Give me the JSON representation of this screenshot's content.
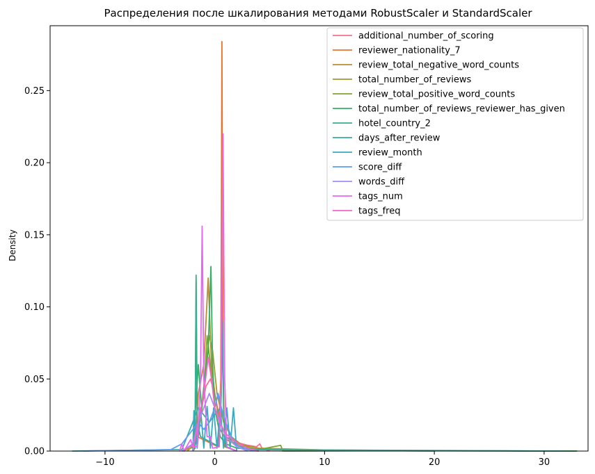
{
  "chart_data": {
    "type": "line",
    "title": "Распределения после шкалирования методами RobustScaler и StandardScaler",
    "xlabel": "",
    "ylabel": "Density",
    "xlim": [
      -15,
      34
    ],
    "ylim": [
      0,
      0.295
    ],
    "x_ticks": [
      -10,
      0,
      10,
      20,
      30
    ],
    "y_ticks": [
      0.0,
      0.05,
      0.1,
      0.15,
      0.2,
      0.25
    ],
    "y_tick_labels": [
      "0.00",
      "0.05",
      "0.10",
      "0.15",
      "0.20",
      "0.25"
    ],
    "grid": false,
    "legend_position": "top-right",
    "series": [
      {
        "name": "additional_number_of_scoring",
        "color": "#f77189",
        "points": [
          [
            -3,
            0
          ],
          [
            -2,
            0.004
          ],
          [
            -1.6,
            0.012
          ],
          [
            -1.2,
            0.03
          ],
          [
            -0.8,
            0.045
          ],
          [
            -0.4,
            0.05
          ],
          [
            0,
            0.04
          ],
          [
            0.5,
            0.02
          ],
          [
            1,
            0.01
          ],
          [
            2,
            0.006
          ],
          [
            3,
            0.004
          ],
          [
            3.8,
            0.003
          ],
          [
            4.1,
            0.005
          ],
          [
            4.3,
            0.002
          ],
          [
            5,
            0
          ]
        ]
      },
      {
        "name": "reviewer_nationality_7",
        "color": "#e8742f",
        "points": [
          [
            -2,
            0
          ],
          [
            -1.8,
            0.002
          ],
          [
            -1.7,
            0.118
          ],
          [
            -1.6,
            0.01
          ],
          [
            0.3,
            0.003
          ],
          [
            0.55,
            0.05
          ],
          [
            0.65,
            0.284
          ],
          [
            0.75,
            0.06
          ],
          [
            0.9,
            0.003
          ],
          [
            2,
            0
          ]
        ]
      },
      {
        "name": "review_total_negative_word_counts",
        "color": "#bb8b32",
        "points": [
          [
            -3,
            0
          ],
          [
            -1.8,
            0.003
          ],
          [
            -1.5,
            0.04
          ],
          [
            -1,
            0.06
          ],
          [
            -0.6,
            0.12
          ],
          [
            -0.3,
            0.06
          ],
          [
            0,
            0.04
          ],
          [
            0.5,
            0.015
          ],
          [
            1,
            0.008
          ],
          [
            2,
            0.005
          ],
          [
            4,
            0.002
          ],
          [
            10,
            0.0008
          ],
          [
            20,
            0.0002
          ],
          [
            33,
            0
          ]
        ]
      },
      {
        "name": "total_number_of_reviews",
        "color": "#a09b31",
        "points": [
          [
            -2.5,
            0
          ],
          [
            -1.8,
            0.005
          ],
          [
            -1.2,
            0.03
          ],
          [
            -0.8,
            0.06
          ],
          [
            -0.5,
            0.08
          ],
          [
            -0.2,
            0.07
          ],
          [
            0.2,
            0.04
          ],
          [
            0.8,
            0.02
          ],
          [
            1.5,
            0.01
          ],
          [
            2.5,
            0.004
          ],
          [
            4,
            0
          ]
        ]
      },
      {
        "name": "review_total_positive_word_counts",
        "color": "#7ea631",
        "points": [
          [
            -2,
            0
          ],
          [
            -1.5,
            0.01
          ],
          [
            -1,
            0.04
          ],
          [
            -0.7,
            0.08
          ],
          [
            -0.4,
            0.06
          ],
          [
            0,
            0.03
          ],
          [
            1,
            0.01
          ],
          [
            2,
            0.004
          ],
          [
            4,
            0.001
          ],
          [
            6,
            0.004
          ],
          [
            6.2,
            0
          ],
          [
            15,
            0.0003
          ],
          [
            20,
            0
          ]
        ]
      },
      {
        "name": "total_number_of_reviews_reviewer_has_given",
        "color": "#32b165",
        "points": [
          [
            -2,
            0
          ],
          [
            -1.5,
            0.06
          ],
          [
            -1.2,
            0.03
          ],
          [
            -0.9,
            0.05
          ],
          [
            -0.6,
            0.07
          ],
          [
            -0.35,
            0.128
          ],
          [
            -0.2,
            0.06
          ],
          [
            0,
            0.03
          ],
          [
            0.5,
            0.01
          ],
          [
            1,
            0.005
          ],
          [
            2,
            0.002
          ],
          [
            5,
            0.001
          ],
          [
            15,
            0.0003
          ],
          [
            33,
            0
          ]
        ]
      },
      {
        "name": "hotel_country_2",
        "color": "#34ae91",
        "points": [
          [
            -2,
            0
          ],
          [
            -1.8,
            0.002
          ],
          [
            -1.7,
            0.122
          ],
          [
            -1.6,
            0.02
          ],
          [
            -1.3,
            0.01
          ],
          [
            0.4,
            0.003
          ],
          [
            0.6,
            0.04
          ],
          [
            0.7,
            0.09
          ],
          [
            0.8,
            0.03
          ],
          [
            1,
            0.003
          ],
          [
            2,
            0
          ]
        ]
      },
      {
        "name": "days_after_review",
        "color": "#36ada4",
        "points": [
          [
            -13,
            0
          ],
          [
            -3,
            0.001
          ],
          [
            -2,
            0.02
          ],
          [
            -1.5,
            0.03
          ],
          [
            -1,
            0.025
          ],
          [
            -0.5,
            0.02
          ],
          [
            0,
            0.025
          ],
          [
            0.5,
            0.03
          ],
          [
            1,
            0.02
          ],
          [
            1.5,
            0.01
          ],
          [
            2,
            0.004
          ],
          [
            3,
            0.001
          ],
          [
            31.7,
            0
          ]
        ]
      },
      {
        "name": "review_month",
        "color": "#38aabf",
        "points": [
          [
            -2,
            0
          ],
          [
            -1.9,
            0.028
          ],
          [
            -1.6,
            0.002
          ],
          [
            -1.3,
            0.03
          ],
          [
            -1,
            0.002
          ],
          [
            -0.7,
            0.031
          ],
          [
            -0.4,
            0.002
          ],
          [
            -0.1,
            0.03
          ],
          [
            0.2,
            0.002
          ],
          [
            0.5,
            0.03
          ],
          [
            0.8,
            0.002
          ],
          [
            1.1,
            0.03
          ],
          [
            1.4,
            0.002
          ],
          [
            1.7,
            0.03
          ],
          [
            2,
            0
          ]
        ]
      },
      {
        "name": "score_diff",
        "color": "#5d9ef2",
        "points": [
          [
            -12,
            0
          ],
          [
            -4,
            0.001
          ],
          [
            -3,
            0.005
          ],
          [
            -2,
            0.015
          ],
          [
            -1.5,
            0.02
          ],
          [
            -1,
            0.015
          ],
          [
            -0.5,
            0.02
          ],
          [
            0,
            0.03
          ],
          [
            0.3,
            0.04
          ],
          [
            0.6,
            0.03
          ],
          [
            1,
            0.02
          ],
          [
            1.5,
            0.01
          ],
          [
            2,
            0.004
          ],
          [
            3,
            0.001
          ],
          [
            4,
            0
          ]
        ]
      },
      {
        "name": "words_diff",
        "color": "#a48cf4",
        "points": [
          [
            -3,
            0
          ],
          [
            -2,
            0.005
          ],
          [
            -1.5,
            0.02
          ],
          [
            -1,
            0.03
          ],
          [
            -0.5,
            0.04
          ],
          [
            0,
            0.03
          ],
          [
            0.5,
            0.02
          ],
          [
            1,
            0.01
          ],
          [
            2,
            0.003
          ],
          [
            3,
            0
          ]
        ]
      },
      {
        "name": "tags_num",
        "color": "#e866f4",
        "points": [
          [
            -3.2,
            0
          ],
          [
            -3,
            0.005
          ],
          [
            -2.8,
            0
          ],
          [
            -2.5,
            0.004
          ],
          [
            -2.2,
            0.008
          ],
          [
            -2,
            0.003
          ],
          [
            -1.6,
            0.003
          ],
          [
            -1.3,
            0.05
          ],
          [
            -1.15,
            0.156
          ],
          [
            -1,
            0.05
          ],
          [
            -0.7,
            0.01
          ],
          [
            -0.4,
            0.01
          ],
          [
            -0.2,
            0.002
          ],
          [
            0.4,
            0.003
          ],
          [
            0.6,
            0.05
          ],
          [
            0.75,
            0.22
          ],
          [
            0.9,
            0.05
          ],
          [
            1.1,
            0.003
          ],
          [
            2,
            0
          ]
        ]
      },
      {
        "name": "tags_freq",
        "color": "#f565cc",
        "points": [
          [
            -2,
            0
          ],
          [
            -1.5,
            0.02
          ],
          [
            -1,
            0.04
          ],
          [
            -0.6,
            0.065
          ],
          [
            -0.3,
            0.05
          ],
          [
            0,
            0.03
          ],
          [
            0.4,
            0.02
          ],
          [
            1,
            0.012
          ],
          [
            2,
            0.006
          ],
          [
            3,
            0.002
          ],
          [
            4,
            0
          ]
        ]
      }
    ]
  }
}
